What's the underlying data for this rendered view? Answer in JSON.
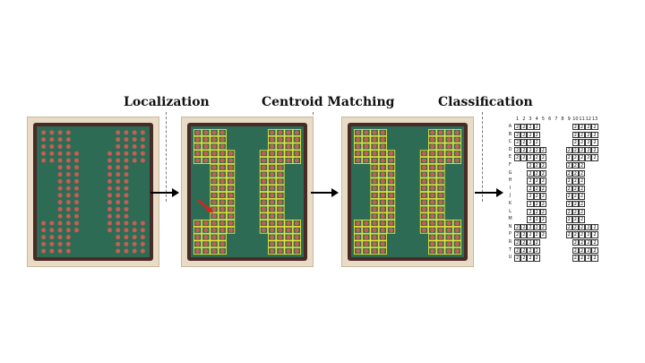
{
  "stages": [
    {
      "label": "Localization"
    },
    {
      "label": "Centroid Matching"
    },
    {
      "label": "Classification"
    }
  ],
  "colors": {
    "chip_bg": "#e9dcc6",
    "board_green": "#2e6b55",
    "dark_border": "#4a2a26",
    "ball_red": "#c65e55",
    "ball_yellow_outline": "#e8e23a",
    "arrow_highlight": "#e81c1c"
  },
  "grid": {
    "column_headers": [
      "1",
      "2",
      "3",
      "4",
      "5",
      "6",
      "7",
      "8",
      "9",
      "10",
      "11",
      "12",
      "13"
    ],
    "row_headers": [
      "A",
      "B",
      "C",
      "D",
      "E",
      "F",
      "G",
      "H",
      "I",
      "J",
      "K",
      "L",
      "M",
      "N",
      "P",
      "R",
      "T",
      "U"
    ],
    "rows": [
      [
        "2",
        "2",
        "2",
        "2",
        "",
        "",
        "",
        "",
        "",
        "2",
        "2",
        "2",
        "2"
      ],
      [
        "2",
        "2",
        "2",
        "2",
        "",
        "",
        "",
        "",
        "",
        "2",
        "2",
        "2",
        "2"
      ],
      [
        "2",
        "2",
        "2",
        "2",
        "",
        "",
        "",
        "",
        "",
        "2",
        "2",
        "2",
        "2"
      ],
      [
        "2",
        "2",
        "2",
        "2",
        "2",
        "",
        "",
        "",
        "2",
        "2",
        "2",
        "2",
        "2"
      ],
      [
        "2",
        "2",
        "2",
        "2",
        "2",
        "",
        "",
        "",
        "2",
        "2",
        "2",
        "2",
        "2"
      ],
      [
        "",
        "",
        "2",
        "2",
        "2",
        "",
        "",
        "",
        "2",
        "2",
        "2",
        "",
        ""
      ],
      [
        "",
        "",
        "2",
        "2",
        "2",
        "",
        "",
        "",
        "2",
        "2",
        "2",
        "",
        ""
      ],
      [
        "",
        "",
        "2",
        "2",
        "2",
        "",
        "",
        "",
        "2",
        "2",
        "2",
        "",
        ""
      ],
      [
        "",
        "",
        "2",
        "2",
        "2",
        "",
        "",
        "",
        "2",
        "2",
        "2",
        "",
        ""
      ],
      [
        "",
        "",
        "2",
        "2",
        "2",
        "",
        "",
        "",
        "2",
        "2",
        "2",
        "",
        ""
      ],
      [
        "",
        "",
        "2",
        "2",
        "2",
        "",
        "",
        "",
        "2",
        "2",
        "2",
        "",
        ""
      ],
      [
        "",
        "",
        "2",
        "2",
        "2",
        "",
        "",
        "",
        "2",
        "2",
        "2",
        "",
        ""
      ],
      [
        "",
        "",
        "2",
        "2",
        "2",
        "",
        "",
        "",
        "2",
        "2",
        "2",
        "",
        ""
      ],
      [
        "2",
        "2",
        "2",
        "2",
        "2",
        "",
        "",
        "",
        "2",
        "2",
        "2",
        "2",
        "2"
      ],
      [
        "2",
        "2",
        "2",
        "2",
        "2",
        "",
        "",
        "",
        "2",
        "2",
        "2",
        "2",
        "2"
      ],
      [
        "2",
        "2",
        "2",
        "2",
        "",
        "",
        "",
        "",
        "",
        "2",
        "2",
        "2",
        "2"
      ],
      [
        "2",
        "2",
        "2",
        "2",
        "",
        "",
        "",
        "",
        "",
        "2",
        "2",
        "2",
        "2"
      ],
      [
        "2",
        "2",
        "2",
        "2",
        "",
        "",
        "",
        "",
        "",
        "2",
        "2",
        "2",
        "2"
      ]
    ]
  }
}
